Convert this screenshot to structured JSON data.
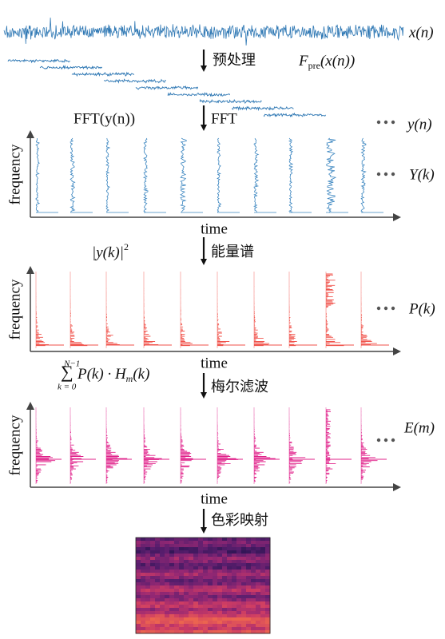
{
  "signal": {
    "label": "x(n)"
  },
  "preprocess": {
    "step": "预处理",
    "output": {
      "base": "F",
      "sub": "pre",
      "arg": "(x(n))"
    }
  },
  "fft": {
    "formula": "FFT(y(n))",
    "step": "FFT",
    "input": "y(n)",
    "output": "Y(k)"
  },
  "power": {
    "formula": {
      "base": "|y(k)|",
      "sup": "2"
    },
    "step": "能量谱",
    "output": "P(k)"
  },
  "mel": {
    "formula": {
      "upper": "N−1",
      "sigma": "∑",
      "lower": "k = 0",
      "term": "P(k) · H",
      "sub": "m",
      "tail": "(k)"
    },
    "step": "梅尔滤波",
    "output": "E(m)"
  },
  "colormap": {
    "step": "色彩映射"
  },
  "panels": [
    {
      "ylabel": "frequency",
      "xlabel": "time"
    },
    {
      "ylabel": "frequency",
      "xlabel": "time"
    },
    {
      "ylabel": "frequency",
      "xlabel": "time"
    }
  ]
}
